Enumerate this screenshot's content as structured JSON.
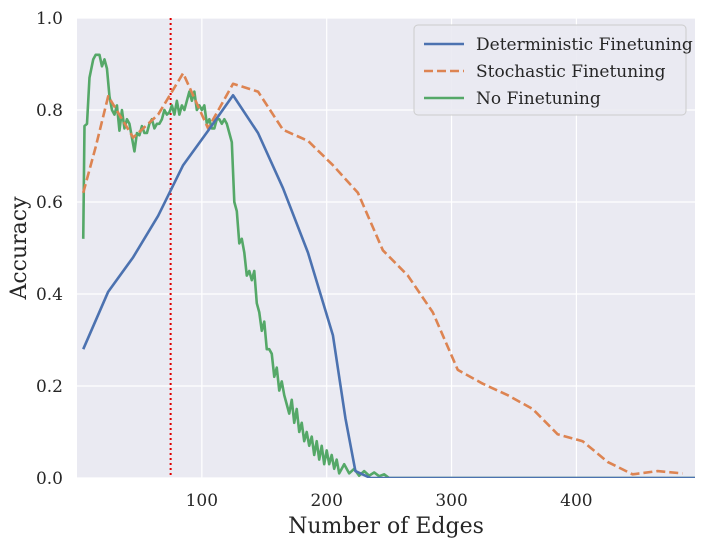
{
  "chart_data": {
    "type": "line",
    "title": "",
    "xlabel": "Number of Edges",
    "ylabel": "Accuracy",
    "xlim": [
      0,
      495
    ],
    "ylim": [
      0.0,
      1.0
    ],
    "xticks": [
      100,
      200,
      300,
      400
    ],
    "yticks": [
      0.0,
      0.2,
      0.4,
      0.6,
      0.8,
      1.0
    ],
    "xtick_labels": [
      "100",
      "200",
      "300",
      "400"
    ],
    "ytick_labels": [
      "0.0",
      "0.2",
      "0.4",
      "0.6",
      "0.8",
      "1.0"
    ],
    "grid": true,
    "legend_position": "top-right",
    "background": "#eaeaf2",
    "reference_line": {
      "x": 75,
      "color": "#e00000",
      "style": "dotted"
    },
    "series": [
      {
        "name": "Deterministic Finetuning",
        "color": "#4c72b0",
        "style": "solid",
        "points": [
          [
            5,
            0.28
          ],
          [
            25,
            0.405
          ],
          [
            45,
            0.48
          ],
          [
            65,
            0.57
          ],
          [
            85,
            0.68
          ],
          [
            105,
            0.755
          ],
          [
            125,
            0.832
          ],
          [
            145,
            0.75
          ],
          [
            165,
            0.63
          ],
          [
            185,
            0.49
          ],
          [
            205,
            0.31
          ],
          [
            215,
            0.13
          ],
          [
            223,
            0.015
          ],
          [
            235,
            0.0
          ],
          [
            495,
            0.0
          ]
        ]
      },
      {
        "name": "Stochastic Finetuning",
        "color": "#dd8452",
        "style": "dashed",
        "points": [
          [
            5,
            0.62
          ],
          [
            15,
            0.72
          ],
          [
            25,
            0.83
          ],
          [
            45,
            0.74
          ],
          [
            65,
            0.79
          ],
          [
            85,
            0.88
          ],
          [
            105,
            0.76
          ],
          [
            125,
            0.857
          ],
          [
            145,
            0.84
          ],
          [
            165,
            0.757
          ],
          [
            185,
            0.733
          ],
          [
            205,
            0.68
          ],
          [
            225,
            0.62
          ],
          [
            245,
            0.495
          ],
          [
            265,
            0.44
          ],
          [
            285,
            0.36
          ],
          [
            305,
            0.235
          ],
          [
            325,
            0.205
          ],
          [
            345,
            0.18
          ],
          [
            365,
            0.15
          ],
          [
            385,
            0.095
          ],
          [
            405,
            0.08
          ],
          [
            425,
            0.035
          ],
          [
            445,
            0.008
          ],
          [
            465,
            0.015
          ],
          [
            485,
            0.01
          ]
        ]
      },
      {
        "name": "No Finetuning",
        "color": "#55a868",
        "style": "solid",
        "points": [
          [
            5,
            0.52
          ],
          [
            6,
            0.765
          ],
          [
            8,
            0.77
          ],
          [
            10,
            0.87
          ],
          [
            13,
            0.91
          ],
          [
            15,
            0.92
          ],
          [
            18,
            0.92
          ],
          [
            20,
            0.895
          ],
          [
            22,
            0.91
          ],
          [
            24,
            0.89
          ],
          [
            26,
            0.83
          ],
          [
            28,
            0.8
          ],
          [
            30,
            0.79
          ],
          [
            32,
            0.81
          ],
          [
            34,
            0.755
          ],
          [
            36,
            0.8
          ],
          [
            38,
            0.76
          ],
          [
            40,
            0.78
          ],
          [
            42,
            0.77
          ],
          [
            44,
            0.74
          ],
          [
            46,
            0.71
          ],
          [
            48,
            0.75
          ],
          [
            50,
            0.745
          ],
          [
            52,
            0.765
          ],
          [
            54,
            0.75
          ],
          [
            56,
            0.75
          ],
          [
            58,
            0.77
          ],
          [
            60,
            0.78
          ],
          [
            62,
            0.76
          ],
          [
            64,
            0.77
          ],
          [
            66,
            0.77
          ],
          [
            68,
            0.78
          ],
          [
            70,
            0.8
          ],
          [
            72,
            0.79
          ],
          [
            74,
            0.795
          ],
          [
            76,
            0.81
          ],
          [
            78,
            0.79
          ],
          [
            80,
            0.82
          ],
          [
            82,
            0.79
          ],
          [
            84,
            0.81
          ],
          [
            86,
            0.8
          ],
          [
            88,
            0.82
          ],
          [
            90,
            0.84
          ],
          [
            92,
            0.82
          ],
          [
            94,
            0.84
          ],
          [
            96,
            0.8
          ],
          [
            98,
            0.81
          ],
          [
            100,
            0.8
          ],
          [
            102,
            0.81
          ],
          [
            104,
            0.77
          ],
          [
            106,
            0.78
          ],
          [
            108,
            0.76
          ],
          [
            110,
            0.76
          ],
          [
            112,
            0.78
          ],
          [
            114,
            0.78
          ],
          [
            116,
            0.77
          ],
          [
            118,
            0.78
          ],
          [
            120,
            0.77
          ],
          [
            122,
            0.75
          ],
          [
            124,
            0.73
          ],
          [
            126,
            0.6
          ],
          [
            128,
            0.58
          ],
          [
            130,
            0.51
          ],
          [
            132,
            0.52
          ],
          [
            134,
            0.49
          ],
          [
            136,
            0.44
          ],
          [
            138,
            0.45
          ],
          [
            140,
            0.43
          ],
          [
            142,
            0.45
          ],
          [
            144,
            0.38
          ],
          [
            146,
            0.36
          ],
          [
            148,
            0.32
          ],
          [
            150,
            0.34
          ],
          [
            152,
            0.28
          ],
          [
            154,
            0.28
          ],
          [
            156,
            0.27
          ],
          [
            158,
            0.22
          ],
          [
            160,
            0.24
          ],
          [
            162,
            0.19
          ],
          [
            164,
            0.21
          ],
          [
            166,
            0.18
          ],
          [
            168,
            0.16
          ],
          [
            170,
            0.14
          ],
          [
            172,
            0.17
          ],
          [
            174,
            0.12
          ],
          [
            176,
            0.15
          ],
          [
            178,
            0.1
          ],
          [
            180,
            0.12
          ],
          [
            182,
            0.08
          ],
          [
            184,
            0.1
          ],
          [
            186,
            0.07
          ],
          [
            188,
            0.09
          ],
          [
            190,
            0.05
          ],
          [
            192,
            0.08
          ],
          [
            194,
            0.04
          ],
          [
            196,
            0.07
          ],
          [
            198,
            0.03
          ],
          [
            200,
            0.06
          ],
          [
            202,
            0.03
          ],
          [
            204,
            0.05
          ],
          [
            206,
            0.02
          ],
          [
            208,
            0.04
          ],
          [
            210,
            0.01
          ],
          [
            214,
            0.03
          ],
          [
            218,
            0.01
          ],
          [
            222,
            0.02
          ],
          [
            226,
            0.005
          ],
          [
            230,
            0.015
          ],
          [
            234,
            0.005
          ],
          [
            238,
            0.012
          ],
          [
            242,
            0.004
          ],
          [
            246,
            0.008
          ],
          [
            250,
            0.0
          ],
          [
            495,
            0.0
          ]
        ]
      }
    ]
  }
}
